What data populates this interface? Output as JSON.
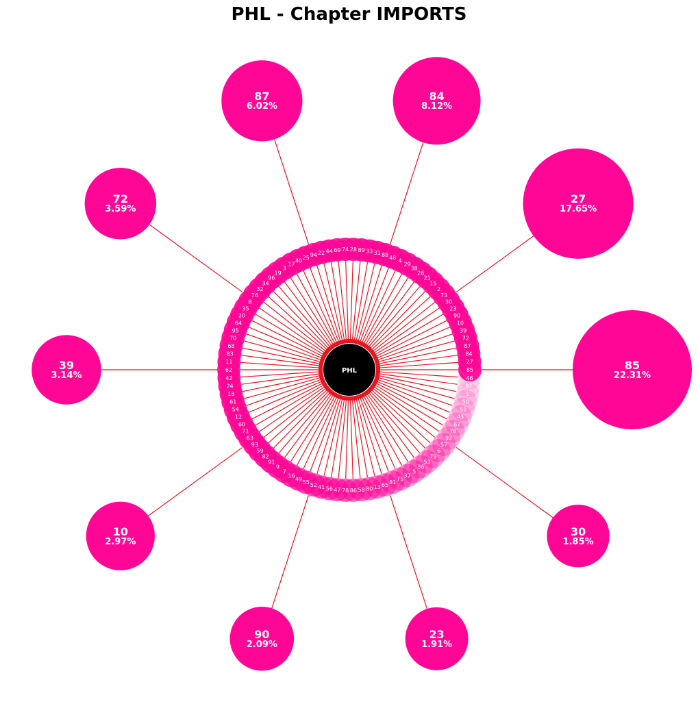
{
  "title": "PHL - Chapter IMPORTS",
  "center_label": "PHL",
  "colors": {
    "accent": "#ff0796",
    "spoke": "#e8141e",
    "center": "#000000",
    "text": "#ffffff"
  },
  "ring_chapters": [
    "85",
    "27",
    "84",
    "87",
    "72",
    "39",
    "10",
    "90",
    "23",
    "30",
    "73",
    "2",
    "15",
    "21",
    "26",
    "38",
    "29",
    "4",
    "48",
    "88",
    "31",
    "33",
    "89",
    "28",
    "74",
    "69",
    "44",
    "22",
    "94",
    "25",
    "40",
    "17",
    "3",
    "19",
    "96",
    "34",
    "32",
    "76",
    "8",
    "35",
    "20",
    "64",
    "95",
    "70",
    "68",
    "83",
    "11",
    "62",
    "42",
    "24",
    "18",
    "61",
    "54",
    "12",
    "60",
    "71",
    "63",
    "93",
    "59",
    "82",
    "91",
    "9",
    "7",
    "16",
    "49",
    "55",
    "52",
    "41",
    "56",
    "47",
    "78",
    "86",
    "58",
    "80",
    "13",
    "65",
    "81",
    "75",
    "37",
    "5",
    "36",
    "53",
    "79",
    "6",
    "57",
    "92",
    "76b",
    "67",
    "43",
    "51",
    "50",
    "1",
    "97",
    "46"
  ],
  "top_chapters": [
    {
      "chapter": "85",
      "share": "22.31%",
      "value": 22.31
    },
    {
      "chapter": "27",
      "share": "17.65%",
      "value": 17.65
    },
    {
      "chapter": "84",
      "share": "8.12%",
      "value": 8.12
    },
    {
      "chapter": "87",
      "share": "6.02%",
      "value": 6.02
    },
    {
      "chapter": "72",
      "share": "3.59%",
      "value": 3.59
    },
    {
      "chapter": "39",
      "share": "3.14%",
      "value": 3.14
    },
    {
      "chapter": "10",
      "share": "2.97%",
      "value": 2.97
    },
    {
      "chapter": "90",
      "share": "2.09%",
      "value": 2.09
    },
    {
      "chapter": "23",
      "share": "1.91%",
      "value": 1.91
    },
    {
      "chapter": "30",
      "share": "1.85%",
      "value": 1.85
    }
  ]
}
